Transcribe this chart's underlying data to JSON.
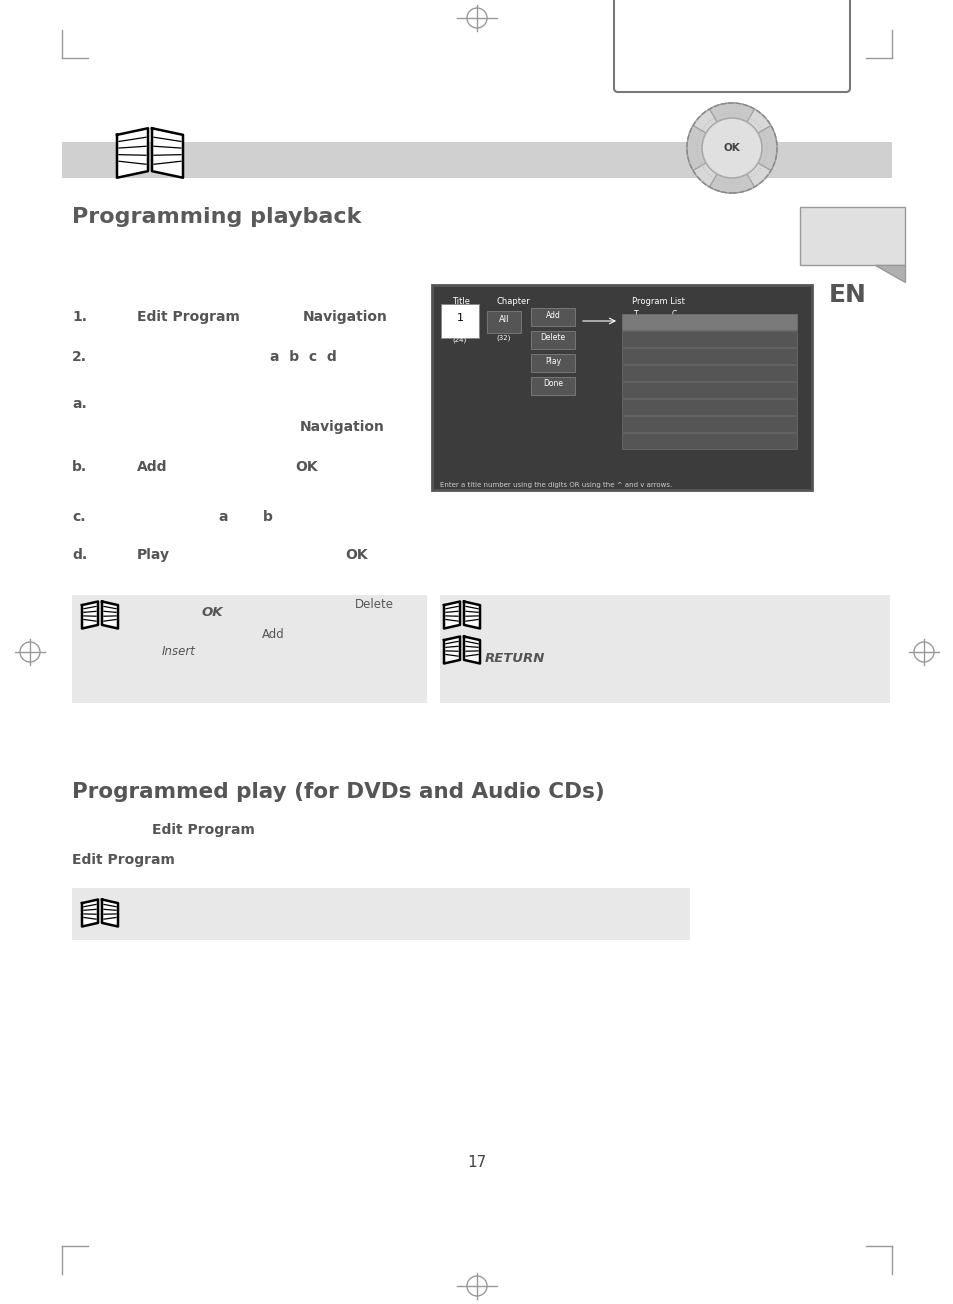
{
  "page_bg": "#ffffff",
  "page_num": "17",
  "title1": "Programming playback",
  "title2": "Programmed play (for DVDs and Audio CDs)",
  "gray_bar_color": "#d0d0d0",
  "section_bg": "#e8e8e8",
  "text_color": "#555555",
  "reg_color": "#999999"
}
